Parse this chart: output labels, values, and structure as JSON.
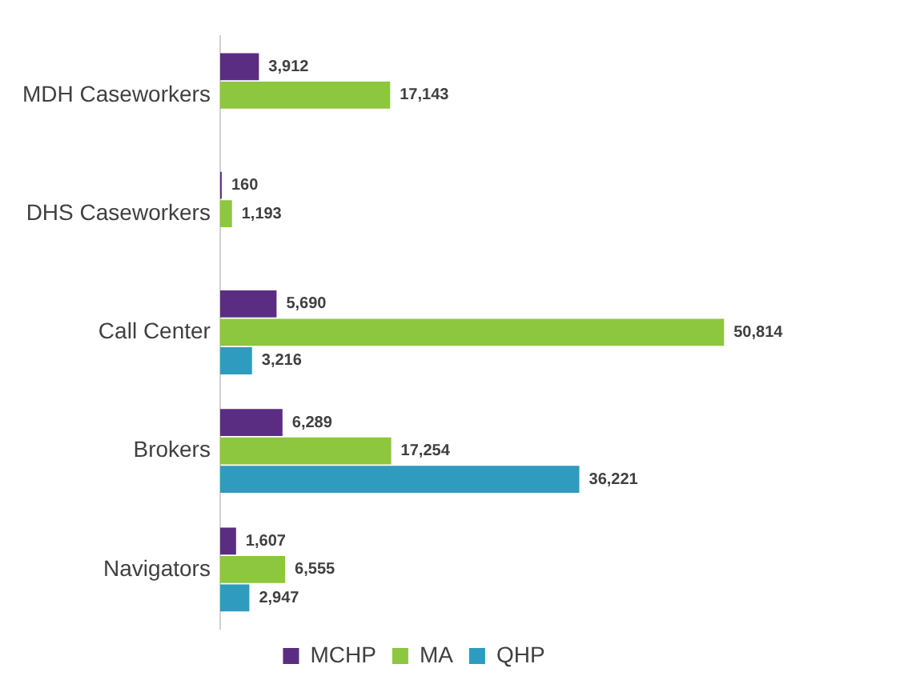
{
  "chart_data": {
    "type": "bar",
    "orientation": "horizontal",
    "categories": [
      "MDH Caseworkers",
      "DHS Caseworkers",
      "Call Center",
      "Brokers",
      "Navigators"
    ],
    "series": [
      {
        "name": "MCHP",
        "color": "#5b2d82",
        "values": [
          3912,
          160,
          5690,
          6289,
          1607
        ],
        "value_labels": [
          "3,912",
          "160",
          "5,690",
          "6,289",
          "1,607"
        ]
      },
      {
        "name": "MA",
        "color": "#8dc63f",
        "values": [
          17143,
          1193,
          50814,
          17254,
          6555
        ],
        "value_labels": [
          "17,143",
          "1,193",
          "50,814",
          "17,254",
          "6,555"
        ]
      },
      {
        "name": "QHP",
        "color": "#2e9bbf",
        "values": [
          null,
          null,
          3216,
          36221,
          2947
        ],
        "value_labels": [
          null,
          null,
          "3,216",
          "36,221",
          "2,947"
        ]
      }
    ],
    "legend": "bottom"
  }
}
